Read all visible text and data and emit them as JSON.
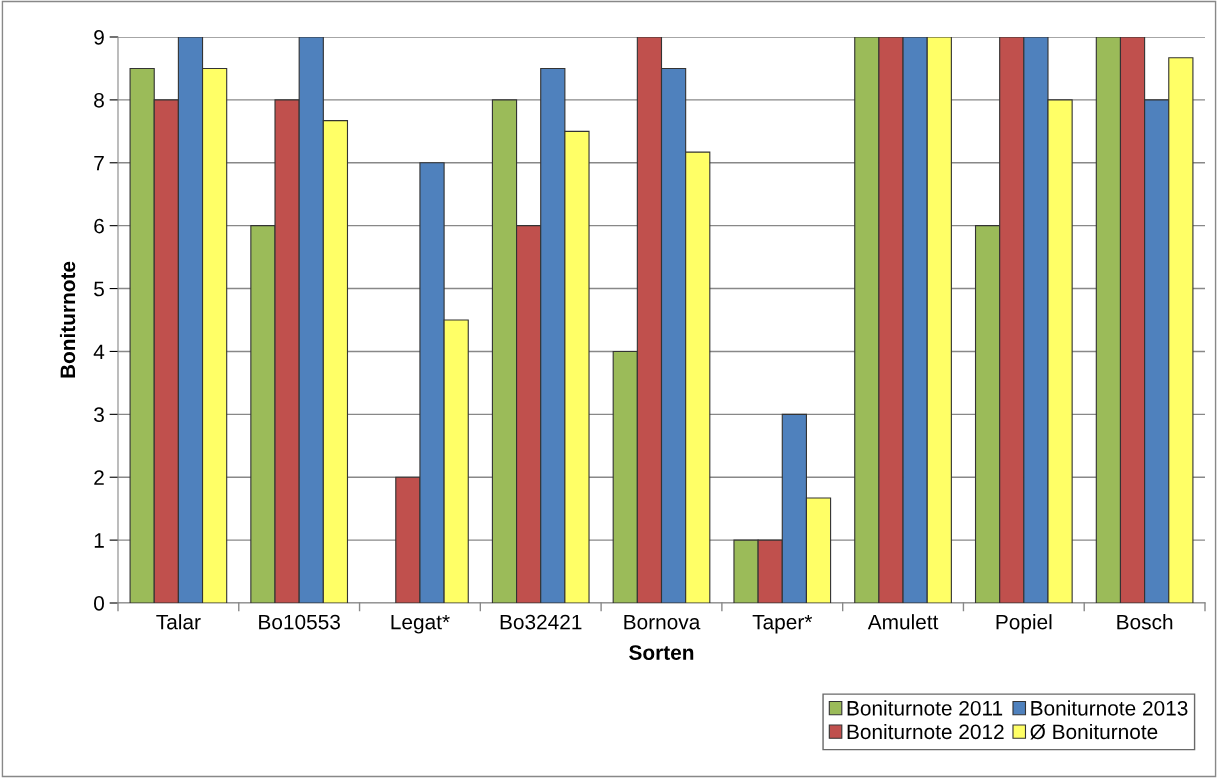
{
  "chart_data": {
    "type": "bar",
    "xlabel": "Sorten",
    "ylabel": "Boniturnote",
    "categories": [
      "Talar",
      "Bo10553",
      "Legat*",
      "Bo32421",
      "Bornova",
      "Taper*",
      "Amulett",
      "Popiel",
      "Bosch"
    ],
    "series": [
      {
        "name": "Boniturnote 2011",
        "color": "#9bbb59",
        "values": [
          8.5,
          6,
          null,
          8,
          4,
          1,
          9,
          6,
          9
        ]
      },
      {
        "name": "Boniturnote 2012",
        "color": "#c0504d",
        "values": [
          8,
          8,
          2,
          6,
          9,
          1,
          9,
          9,
          9
        ]
      },
      {
        "name": "Boniturnote 2013",
        "color": "#4f81bd",
        "values": [
          9,
          9,
          7,
          8.5,
          8.5,
          3,
          9,
          9,
          8
        ]
      },
      {
        "name": "Ø Boniturnote",
        "color": "#ffff66",
        "values": [
          8.5,
          7.67,
          4.5,
          7.5,
          7.17,
          1.67,
          9,
          8,
          8.67
        ]
      }
    ],
    "ylim": [
      0,
      9
    ],
    "yticks": [
      0,
      1,
      2,
      3,
      4,
      5,
      6,
      7,
      8,
      9
    ],
    "grid": "y",
    "legend": "bottom right"
  }
}
